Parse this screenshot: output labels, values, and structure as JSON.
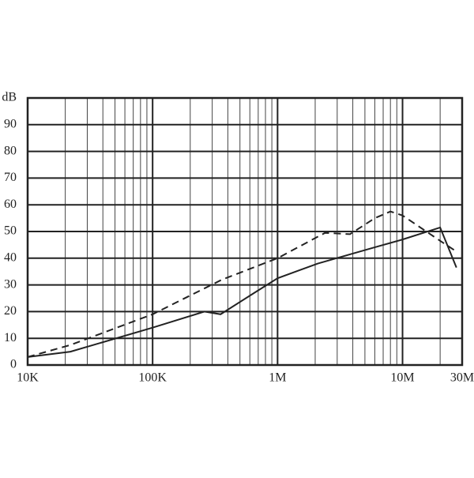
{
  "chart_data": {
    "type": "line",
    "xscale": "log",
    "xlim": [
      10000,
      30000000
    ],
    "ylim": [
      0,
      100
    ],
    "xticks": [
      {
        "value": 10000,
        "label": "10K"
      },
      {
        "value": 100000,
        "label": "100K"
      },
      {
        "value": 1000000,
        "label": "1M"
      },
      {
        "value": 10000000,
        "label": "10M"
      },
      {
        "value": 30000000,
        "label": "30M"
      }
    ],
    "xminorticks": [
      20000,
      30000,
      40000,
      50000,
      60000,
      70000,
      80000,
      90000,
      200000,
      300000,
      400000,
      500000,
      600000,
      700000,
      800000,
      900000,
      2000000,
      3000000,
      4000000,
      5000000,
      6000000,
      7000000,
      8000000,
      9000000,
      20000000
    ],
    "yticks": [
      0,
      10,
      20,
      30,
      40,
      50,
      60,
      70,
      80,
      90,
      {
        "value": 100,
        "label": "dB"
      }
    ],
    "grid": true,
    "series": [
      {
        "color": "#222222",
        "dash": false,
        "x": [
          10000,
          22000,
          100000,
          260000,
          350000,
          650000,
          1000000,
          2100000,
          5900000,
          10000000,
          20000000,
          27000000
        ],
        "values": [
          3,
          5,
          14,
          20,
          19,
          27,
          32.5,
          38,
          44,
          47,
          51.5,
          36.5
        ]
      },
      {
        "color": "#222222",
        "dash": true,
        "x": [
          10000,
          22000,
          100000,
          360000,
          1000000,
          2400000,
          3800000,
          6000000,
          8000000,
          10000000,
          20000000,
          27000000
        ],
        "values": [
          3,
          7.5,
          19,
          32,
          40,
          49.5,
          49,
          55,
          57.5,
          56,
          46.5,
          42.5
        ]
      }
    ]
  }
}
